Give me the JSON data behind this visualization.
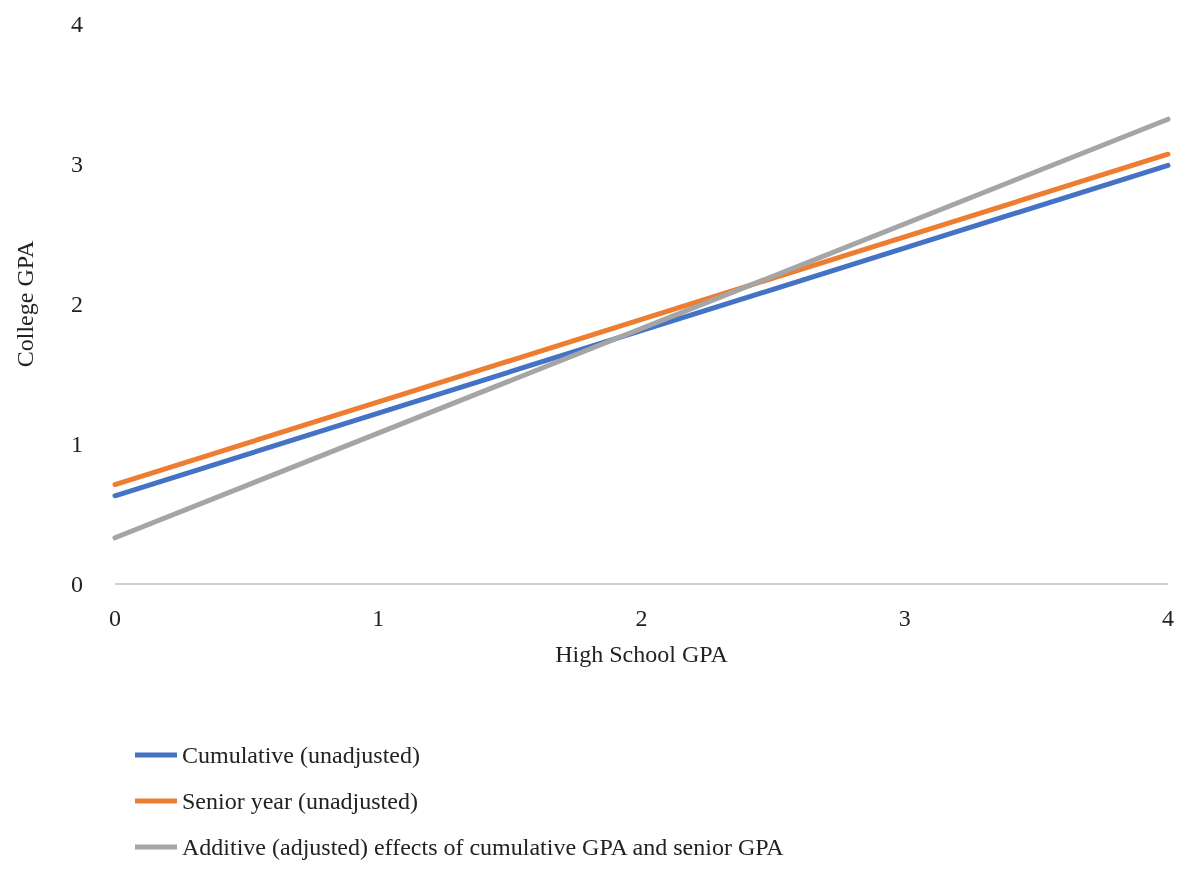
{
  "chart_data": {
    "type": "line",
    "xlabel": "High School GPA",
    "ylabel": "College GPA",
    "x": [
      0,
      4
    ],
    "series": [
      {
        "name": "Cumulative (unadjusted)",
        "color": "#4472c4",
        "values": [
          0.63,
          2.99
        ]
      },
      {
        "name": "Senior year (unadjusted)",
        "color": "#ed7d31",
        "values": [
          0.71,
          3.07
        ]
      },
      {
        "name": "Additive (adjusted) effects of cumulative GPA and senior GPA",
        "color": "#a5a5a5",
        "values": [
          0.33,
          3.32
        ]
      }
    ],
    "xlim": [
      0,
      4
    ],
    "xticks": [
      0,
      1,
      2,
      3,
      4
    ],
    "ylim": [
      0,
      4
    ],
    "yticks": [
      0,
      1,
      2,
      3,
      4
    ],
    "grid": false,
    "legend": "bottom",
    "marker": "none",
    "line_style": "solid"
  }
}
